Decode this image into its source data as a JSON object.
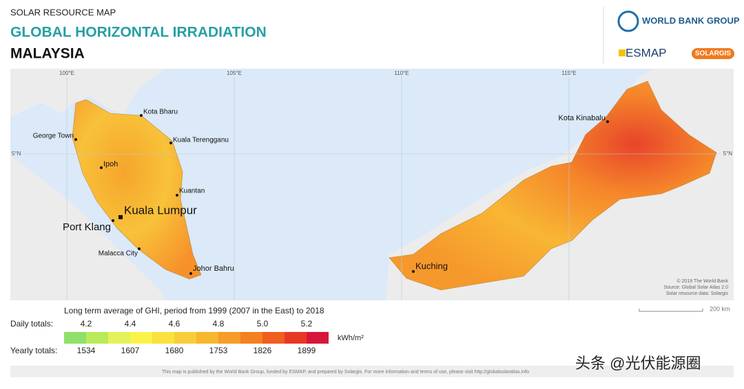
{
  "header": {
    "subtitle": "SOLAR RESOURCE MAP",
    "title": "GLOBAL HORIZONTAL IRRADIATION",
    "country": "MALAYSIA"
  },
  "logos": {
    "world_bank": "WORLD BANK GROUP",
    "esmap": "ESMAP",
    "solargis": "SOLARGIS"
  },
  "map": {
    "grid_labels": [
      "100°E",
      "105°E",
      "110°E",
      "115°E",
      "5°N",
      "5°N"
    ],
    "cities": [
      "Kota Bharu",
      "George Town",
      "Kuala Terengganu",
      "Ipoh",
      "Kuantan",
      "Kuala Lumpur",
      "Port Klang",
      "Malacca City",
      "Johor Bahru",
      "Kuching",
      "Kota Kinabalu"
    ],
    "credits": [
      "© 2019 The World Bank",
      "Source: Global Solar Atlas 2.0",
      "Solar resource data: Solargis"
    ],
    "scale": "200 km"
  },
  "legend": {
    "title": "Long term average of GHI, period from 1999 (2007 in the East) to 2018",
    "daily_label": "Daily totals:",
    "yearly_label": "Yearly totals:",
    "unit": "kWh/m²",
    "daily_ticks": [
      4.2,
      4.4,
      4.6,
      4.8,
      {
        "value": 5,
        "label": "5.0"
      },
      5.2
    ],
    "yearly_ticks": [
      1534,
      1607,
      1680,
      1753,
      1826,
      1899
    ],
    "colors": [
      "#8fe06a",
      "#b9ea5a",
      "#e3f25a",
      "#fbf34a",
      "#fae13c",
      "#f8cd3a",
      "#f7b630",
      "#f69c28",
      "#f5801f",
      "#ef5f1f",
      "#e63a25",
      "#d6163a"
    ]
  },
  "footer": "This map is published by the World Bank Group, funded by ESMAP, and prepared by Solargis. For more information and terms of use, please visit http://globalsolaratlas.info",
  "watermark": "头条 @光伏能源圈"
}
